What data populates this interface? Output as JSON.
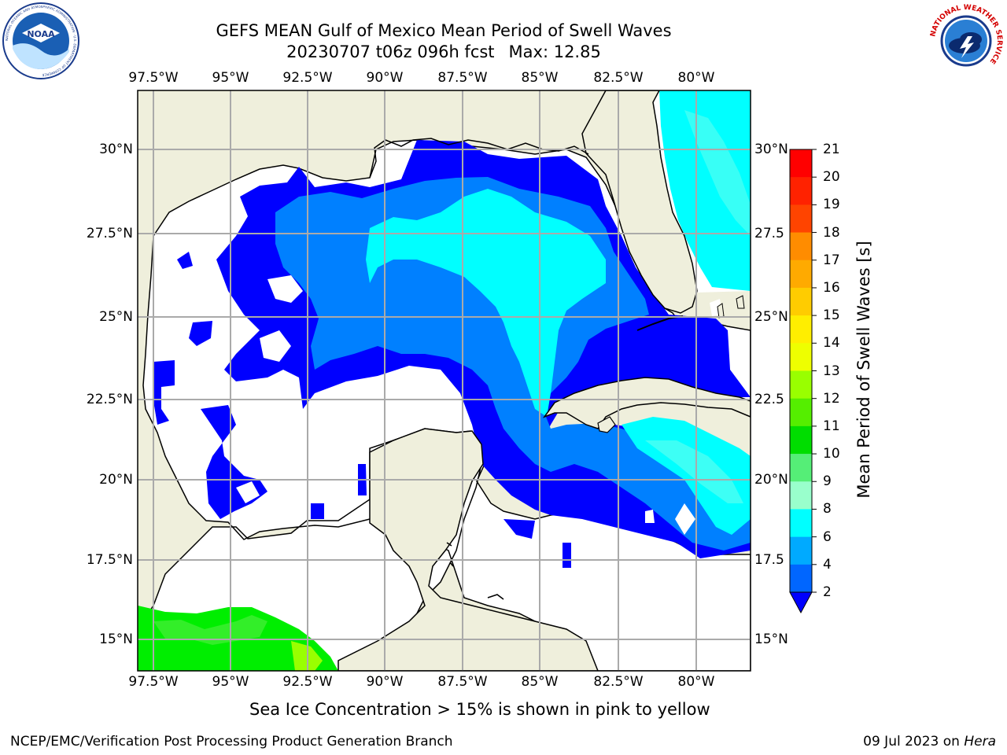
{
  "title": {
    "line1": "GEFS MEAN Gulf of Mexico Mean Period of Swell Waves",
    "run": "20230707 t06z 096h fcst",
    "max": "Max: 12.85"
  },
  "logos": {
    "left": "NOAA",
    "left_ring": "NATIONAL OCEANIC AND ATMOSPHERIC ADMINISTRATION · U.S. DEPARTMENT OF COMMERCE",
    "right_ring": "NATIONAL WEATHER SERVICE"
  },
  "map": {
    "lon_labels": [
      "97.5°W",
      "95°W",
      "92.5°W",
      "90°W",
      "87.5°W",
      "85°W",
      "82.5°W",
      "80°W"
    ],
    "lat_labels_left": [
      "30°N",
      "27.5°N",
      "25°N",
      "22.5°N",
      "20°N",
      "17.5°N",
      "15°N"
    ],
    "lat_labels_right": [
      "30°N",
      "27.5",
      "25°N",
      "22.5",
      "20°N",
      "17.5",
      "15°N"
    ]
  },
  "colorbar": {
    "label": "Mean Period of Swell Waves [s]",
    "ticks": [
      "21",
      "20",
      "19",
      "18",
      "17",
      "16",
      "15",
      "14",
      "13",
      "12",
      "11",
      "10",
      "9",
      "8",
      "6",
      "4",
      "2"
    ],
    "colors": [
      "#ff0000",
      "#ff2200",
      "#ff4400",
      "#ff6600",
      "#ff8c00",
      "#ffaa00",
      "#ffcc00",
      "#ffee00",
      "#eeff00",
      "#ccff00",
      "#99ff00",
      "#55ee00",
      "#00dd00",
      "#55ee77",
      "#99ffcc",
      "#55ffee",
      "#00ffff",
      "#00aaff",
      "#0066ff"
    ],
    "extend_color": "#0000ff"
  },
  "colors": {
    "land": "#efefdc",
    "swell_2_4": "#0000ff",
    "swell_4_6": "#0080ff",
    "swell_6_8": "#00ffff",
    "swell_8_10": "#66ffee",
    "swell_11_12": "#00ee00"
  },
  "note": "Sea Ice Concentration > 15% is shown in pink to yellow",
  "footer": {
    "left": "NCEP/EMC/Verification Post Processing Product Generation Branch",
    "date": "09 Jul 2023 on ",
    "machine": "Hera"
  }
}
